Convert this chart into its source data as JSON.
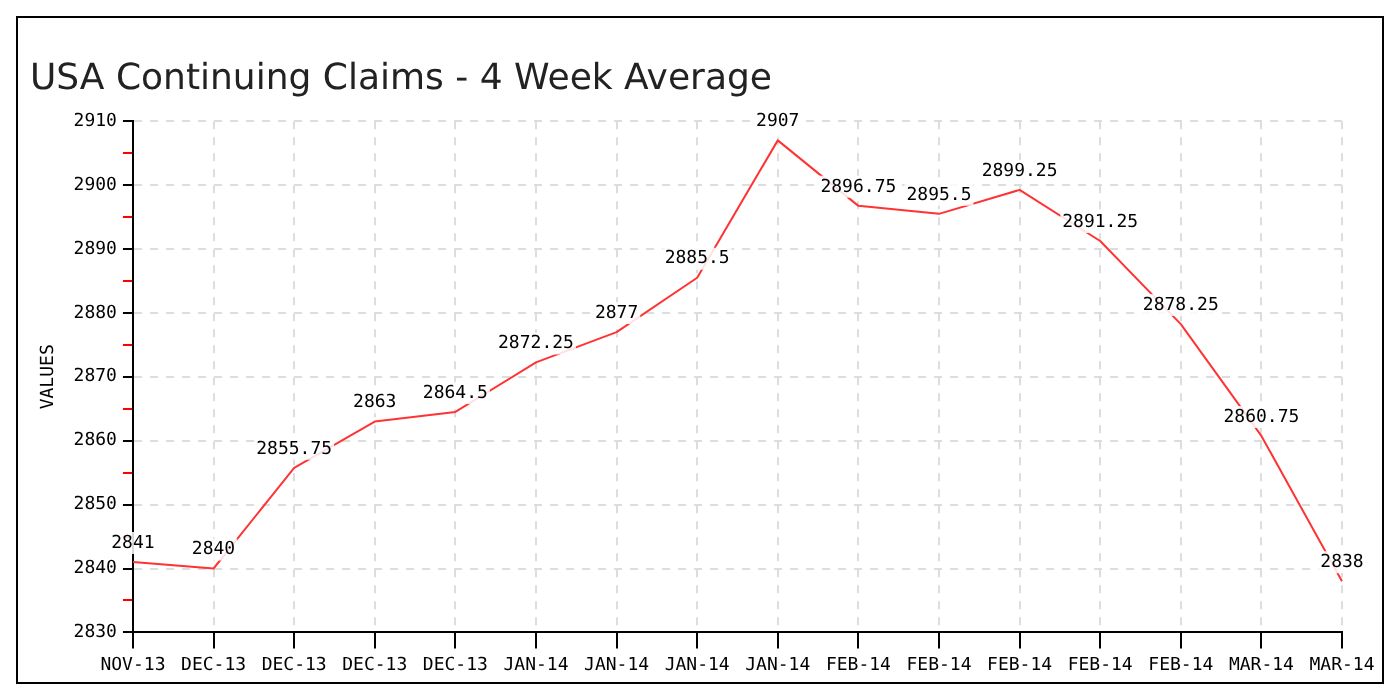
{
  "chart_data": {
    "type": "line",
    "title": "USA Continuing Claims - 4 Week Average",
    "ylabel": "VALUES",
    "categories": [
      "NOV-13",
      "DEC-13",
      "DEC-13",
      "DEC-13",
      "DEC-13",
      "JAN-14",
      "JAN-14",
      "JAN-14",
      "JAN-14",
      "FEB-14",
      "FEB-14",
      "FEB-14",
      "FEB-14",
      "FEB-14",
      "MAR-14",
      "MAR-14"
    ],
    "series": [
      {
        "color": "#ff3333",
        "values": [
          2841,
          2840,
          2855.75,
          2863,
          2864.5,
          2872.25,
          2877,
          2885.5,
          2907,
          2896.75,
          2895.5,
          2899.25,
          2891.25,
          2878.25,
          2860.75,
          2838
        ]
      }
    ],
    "ylim": [
      2830,
      2910
    ],
    "yticks": [
      2830,
      {
        "value": 2835,
        "label": null
      },
      2840,
      {
        "value": 2845,
        "label": null
      },
      2850,
      {
        "value": 2855,
        "label": null
      },
      2860,
      {
        "value": 2865,
        "label": null
      },
      2870,
      {
        "value": 2875,
        "label": null
      },
      2880,
      {
        "value": 2885,
        "label": null
      },
      2890,
      {
        "value": 2895,
        "label": null
      },
      2900,
      {
        "value": 2905,
        "label": null
      },
      2910
    ],
    "grid": true,
    "legend": false,
    "marker": "none",
    "line_style": "solid",
    "data_labels": true
  }
}
